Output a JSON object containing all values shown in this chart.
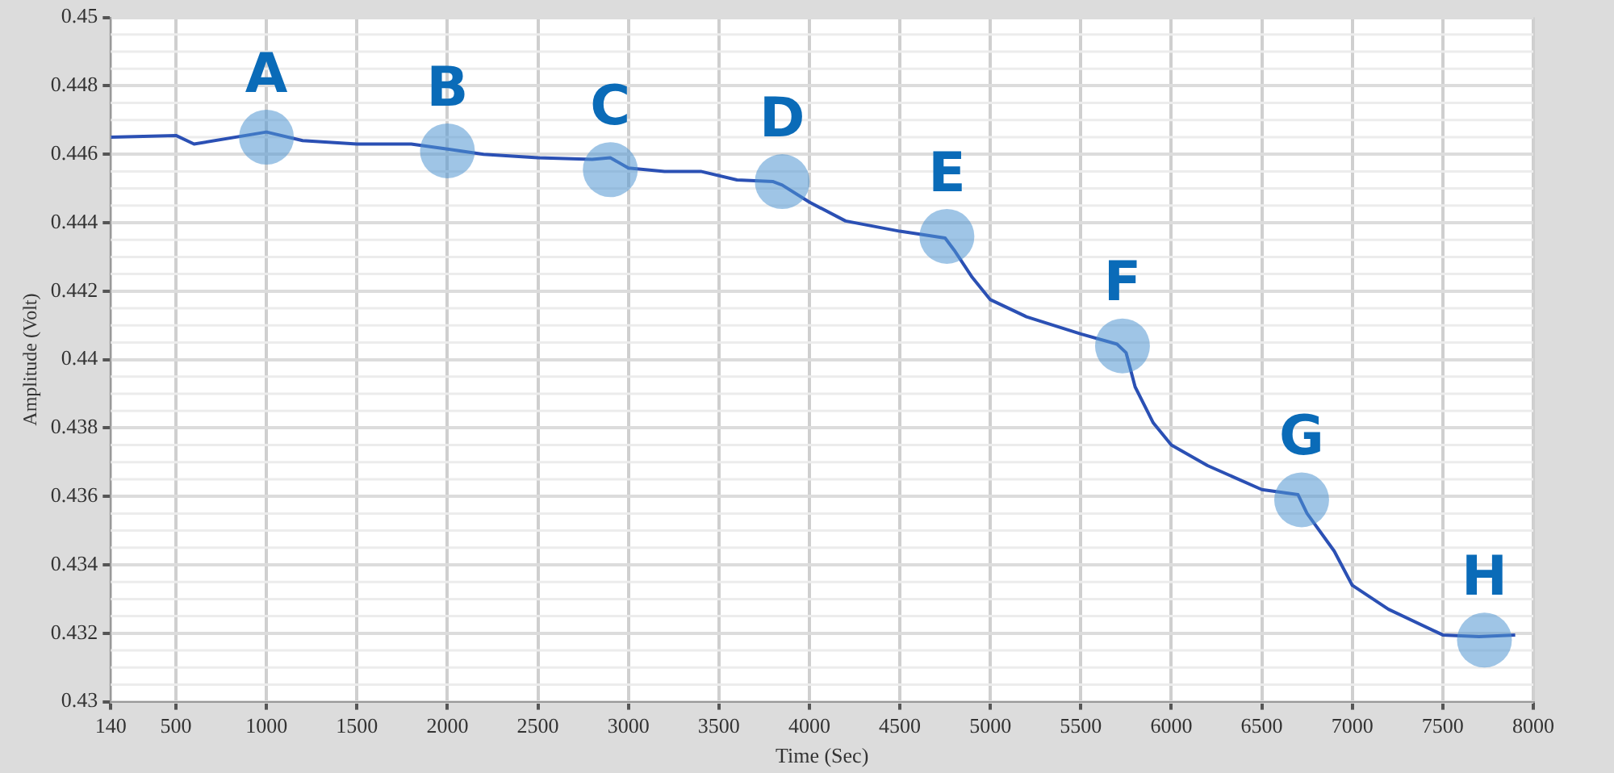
{
  "chart_data": {
    "type": "line",
    "xlabel": "Time (Sec)",
    "ylabel": "Amplitude (Volt)",
    "xlim": [
      140,
      8000
    ],
    "xticks": [
      140,
      500,
      1000,
      1500,
      2000,
      2500,
      3000,
      3500,
      4000,
      4500,
      5000,
      5500,
      6000,
      6500,
      7000,
      7500,
      8000
    ],
    "ylim": [
      0.43,
      0.45
    ],
    "yticks": [
      0.43,
      0.432,
      0.434,
      0.436,
      0.438,
      0.44,
      0.442,
      0.444,
      0.446,
      0.448,
      0.45
    ],
    "grid": true,
    "marker": "none",
    "line_style": "solid",
    "legend": false,
    "series": [
      {
        "color": "#2b50b4",
        "x": [
          140,
          500,
          600,
          1000,
          1200,
          1500,
          1800,
          2000,
          2200,
          2500,
          2800,
          2900,
          3000,
          3200,
          3400,
          3600,
          3800,
          3850,
          4000,
          4200,
          4500,
          4750,
          4800,
          4900,
          5000,
          5200,
          5500,
          5700,
          5750,
          5800,
          5900,
          6000,
          6200,
          6500,
          6700,
          6750,
          6900,
          7000,
          7200,
          7500,
          7700,
          7900
        ],
        "values": [
          0.4465,
          0.44655,
          0.4463,
          0.44665,
          0.4464,
          0.4463,
          0.4463,
          0.44615,
          0.446,
          0.4459,
          0.44585,
          0.4459,
          0.4456,
          0.4455,
          0.4455,
          0.44525,
          0.4452,
          0.4451,
          0.4446,
          0.44405,
          0.44375,
          0.44355,
          0.4432,
          0.4424,
          0.44175,
          0.44125,
          0.44075,
          0.44045,
          0.4402,
          0.4392,
          0.43815,
          0.4375,
          0.4369,
          0.4362,
          0.43605,
          0.4355,
          0.4344,
          0.4334,
          0.4327,
          0.43195,
          0.4319,
          0.43195
        ]
      }
    ],
    "annotations": [
      {
        "text": "A",
        "x": 1000,
        "y": 0.4465
      },
      {
        "text": "B",
        "x": 2000,
        "y": 0.4461
      },
      {
        "text": "C",
        "x": 2900,
        "y": 0.44555
      },
      {
        "text": "D",
        "x": 3850,
        "y": 0.4452
      },
      {
        "text": "E",
        "x": 4760,
        "y": 0.4436
      },
      {
        "text": "F",
        "x": 5730,
        "y": 0.4404
      },
      {
        "text": "G",
        "x": 6720,
        "y": 0.4359
      },
      {
        "text": "H",
        "x": 7730,
        "y": 0.4318
      }
    ]
  }
}
